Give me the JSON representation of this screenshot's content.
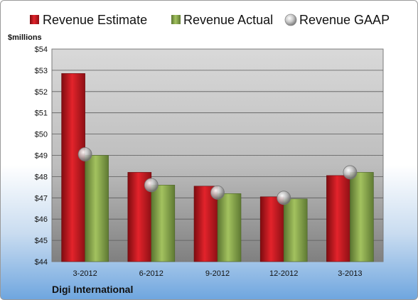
{
  "chart_data": {
    "type": "bar",
    "title": "",
    "ylabel": "$millions",
    "xlabel": "",
    "company": "Digi International",
    "categories": [
      "3-2012",
      "6-2012",
      "9-2012",
      "12-2012",
      "3-2013"
    ],
    "ylim": [
      44,
      54
    ],
    "yticks": [
      44,
      45,
      46,
      47,
      48,
      49,
      50,
      51,
      52,
      53,
      54
    ],
    "ytick_labels": [
      "$44",
      "$45",
      "$46",
      "$47",
      "$48",
      "$49",
      "$50",
      "$51",
      "$52",
      "$53",
      "$54"
    ],
    "grid": true,
    "legend_position": "top",
    "series": [
      {
        "name": "Revenue Estimate",
        "kind": "bar",
        "color": "#c8161d",
        "values": [
          52.85,
          48.2,
          47.55,
          47.05,
          48.05
        ]
      },
      {
        "name": "Revenue Actual",
        "kind": "bar",
        "color": "#8aa94a",
        "values": [
          49.0,
          47.6,
          47.2,
          46.95,
          48.2
        ]
      },
      {
        "name": "Revenue GAAP",
        "kind": "marker",
        "color": "#b8b8b8",
        "values": [
          49.05,
          47.6,
          47.25,
          47.0,
          48.2
        ]
      }
    ]
  }
}
